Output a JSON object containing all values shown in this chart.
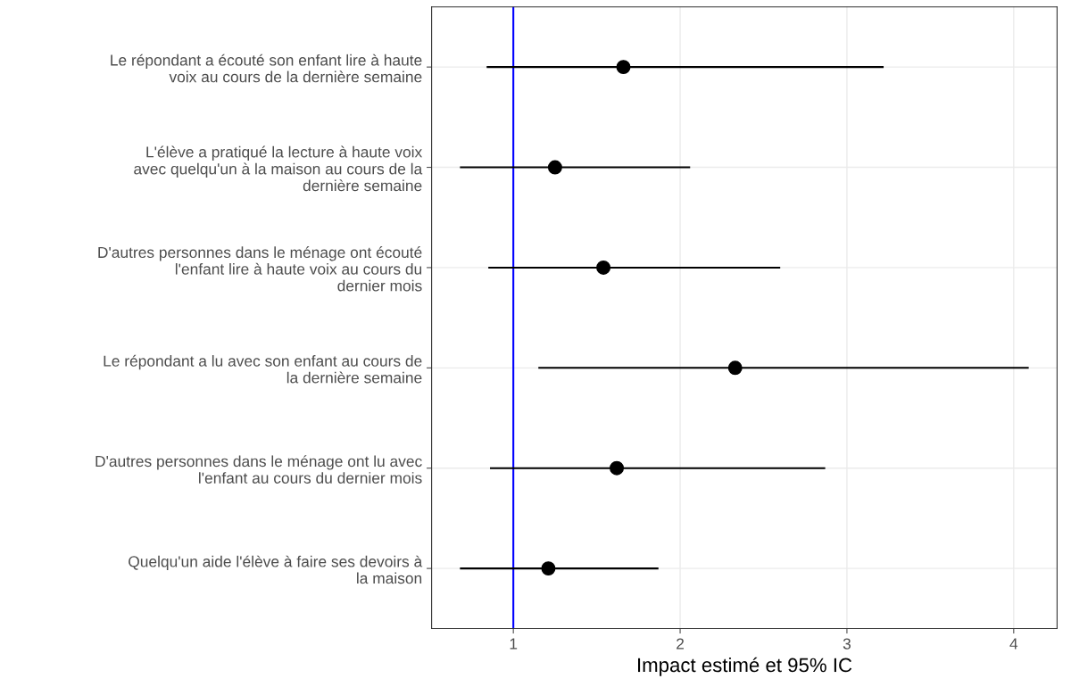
{
  "chart_data": {
    "type": "scatter",
    "orientation": "horizontal",
    "xlabel": "Impact estimé et 95% IC",
    "categories": [
      "Le répondant a écouté son enfant lire à haute\nvoix au cours de la dernière semaine",
      "L'élève a pratiqué la lecture à haute voix\navec quelqu'un à la maison au cours de la\ndernière semaine",
      "D'autres personnes dans le ménage ont écouté\nl'enfant lire à haute voix au cours du\ndernier mois",
      "Le répondant a lu avec son enfant au cours de\nla dernière semaine",
      "D'autres personnes dans le ménage ont lu avec\nl'enfant au cours du dernier mois",
      "Quelqu'un aide l'élève à faire ses devoirs à\nla maison"
    ],
    "values": [
      1.66,
      1.25,
      1.54,
      2.33,
      1.62,
      1.21
    ],
    "errors": [
      [
        0.84,
        3.22
      ],
      [
        0.68,
        2.06
      ],
      [
        0.85,
        2.6
      ],
      [
        1.15,
        4.09
      ],
      [
        0.86,
        2.87
      ],
      [
        0.68,
        1.87
      ]
    ],
    "color": "#000000",
    "marker": "circle",
    "xlim": [
      0.51,
      4.26
    ],
    "xticks": [
      1,
      2,
      3,
      4
    ],
    "ref_lines": [
      {
        "axis": "x",
        "value": 1,
        "color": "#0000ff"
      }
    ],
    "grid": true
  }
}
